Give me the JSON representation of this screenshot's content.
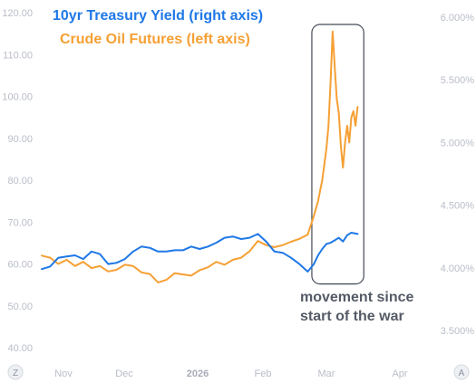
{
  "chart_data": {
    "type": "line",
    "legend": [
      {
        "label": "10yr Treasury Yield (right axis)",
        "color": "#1f78e6"
      },
      {
        "label": "Crude Oil Futures (left axis)",
        "color": "#f5a035"
      }
    ],
    "left_axis": {
      "ticks": [
        "120.00",
        "110.00",
        "100.00",
        "90.00",
        "80.00",
        "70.00",
        "60.00",
        "50.00",
        "40.00"
      ],
      "ylim": [
        40,
        120
      ]
    },
    "right_axis": {
      "ticks": [
        "6.000%",
        "5.500%",
        "5.000%",
        "4.500%",
        "4.000%",
        "3.500%"
      ],
      "ylim": [
        3.5,
        6.0
      ]
    },
    "x_axis": {
      "ticks": [
        "Nov",
        "Dec",
        "2026",
        "Feb",
        "Mar",
        "Apr"
      ],
      "range": [
        "2025-10-22",
        "2026-04-25"
      ]
    },
    "series": [
      {
        "name": "Crude Oil Futures (left axis)",
        "axis": "left",
        "color": "#f5a035",
        "points": [
          [
            "2025-10-22",
            62.0
          ],
          [
            "2025-10-26",
            61.5
          ],
          [
            "2025-10-30",
            60.0
          ],
          [
            "2025-11-03",
            61.0
          ],
          [
            "2025-11-07",
            59.5
          ],
          [
            "2025-11-11",
            60.5
          ],
          [
            "2025-11-15",
            59.0
          ],
          [
            "2025-11-19",
            59.5
          ],
          [
            "2025-11-23",
            58.2
          ],
          [
            "2025-11-27",
            58.6
          ],
          [
            "2025-12-01",
            59.8
          ],
          [
            "2025-12-05",
            59.5
          ],
          [
            "2025-12-09",
            58.0
          ],
          [
            "2025-12-13",
            57.6
          ],
          [
            "2025-12-17",
            55.6
          ],
          [
            "2025-12-21",
            56.2
          ],
          [
            "2025-12-25",
            57.8
          ],
          [
            "2025-12-29",
            57.5
          ],
          [
            "2026-01-02",
            57.2
          ],
          [
            "2026-01-06",
            58.5
          ],
          [
            "2026-01-10",
            59.2
          ],
          [
            "2026-01-14",
            60.5
          ],
          [
            "2026-01-18",
            59.8
          ],
          [
            "2026-01-22",
            61.0
          ],
          [
            "2026-01-26",
            61.5
          ],
          [
            "2026-01-30",
            63.0
          ],
          [
            "2026-02-03",
            65.5
          ],
          [
            "2026-02-07",
            64.5
          ],
          [
            "2026-02-11",
            64.0
          ],
          [
            "2026-02-15",
            64.5
          ],
          [
            "2026-02-19",
            65.3
          ],
          [
            "2026-02-23",
            66.0
          ],
          [
            "2026-02-27",
            67.0
          ],
          [
            "2026-03-02",
            71.5
          ],
          [
            "2026-03-04",
            75.0
          ],
          [
            "2026-03-06",
            80.0
          ],
          [
            "2026-03-08",
            87.5
          ],
          [
            "2026-03-09",
            93.0
          ],
          [
            "2026-03-10",
            103.5
          ],
          [
            "2026-03-11",
            115.5
          ],
          [
            "2026-03-12",
            107.0
          ],
          [
            "2026-03-13",
            99.5
          ],
          [
            "2026-03-14",
            96.0
          ],
          [
            "2026-03-15",
            88.0
          ],
          [
            "2026-03-16",
            83.0
          ],
          [
            "2026-03-17",
            89.0
          ],
          [
            "2026-03-18",
            93.0
          ],
          [
            "2026-03-19",
            89.0
          ],
          [
            "2026-03-20",
            95.0
          ],
          [
            "2026-03-21",
            96.5
          ],
          [
            "2026-03-22",
            93.0
          ],
          [
            "2026-03-23",
            97.5
          ]
        ]
      },
      {
        "name": "10yr Treasury Yield (right axis)",
        "axis": "right",
        "color": "#1f78e6",
        "points": [
          [
            "2025-10-22",
            3.99
          ],
          [
            "2025-10-26",
            4.01
          ],
          [
            "2025-10-30",
            4.08
          ],
          [
            "2025-11-03",
            4.09
          ],
          [
            "2025-11-07",
            4.1
          ],
          [
            "2025-11-11",
            4.07
          ],
          [
            "2025-11-15",
            4.13
          ],
          [
            "2025-11-19",
            4.11
          ],
          [
            "2025-11-23",
            4.03
          ],
          [
            "2025-11-27",
            4.04
          ],
          [
            "2025-12-01",
            4.07
          ],
          [
            "2025-12-05",
            4.13
          ],
          [
            "2025-12-09",
            4.17
          ],
          [
            "2025-12-13",
            4.16
          ],
          [
            "2025-12-17",
            4.13
          ],
          [
            "2025-12-21",
            4.13
          ],
          [
            "2025-12-25",
            4.14
          ],
          [
            "2025-12-29",
            4.14
          ],
          [
            "2026-01-02",
            4.17
          ],
          [
            "2026-01-06",
            4.15
          ],
          [
            "2026-01-10",
            4.17
          ],
          [
            "2026-01-14",
            4.2
          ],
          [
            "2026-01-18",
            4.24
          ],
          [
            "2026-01-22",
            4.25
          ],
          [
            "2026-01-26",
            4.23
          ],
          [
            "2026-01-30",
            4.24
          ],
          [
            "2026-02-03",
            4.27
          ],
          [
            "2026-02-07",
            4.21
          ],
          [
            "2026-02-11",
            4.13
          ],
          [
            "2026-02-15",
            4.12
          ],
          [
            "2026-02-19",
            4.08
          ],
          [
            "2026-02-23",
            4.03
          ],
          [
            "2026-02-27",
            3.97
          ],
          [
            "2026-03-02",
            4.03
          ],
          [
            "2026-03-04",
            4.1
          ],
          [
            "2026-03-06",
            4.15
          ],
          [
            "2026-03-08",
            4.19
          ],
          [
            "2026-03-10",
            4.2
          ],
          [
            "2026-03-12",
            4.22
          ],
          [
            "2026-03-14",
            4.24
          ],
          [
            "2026-03-16",
            4.21
          ],
          [
            "2026-03-18",
            4.26
          ],
          [
            "2026-03-20",
            4.28
          ],
          [
            "2026-03-23",
            4.27
          ]
        ]
      }
    ],
    "annotation": {
      "text_line1": "movement since",
      "text_line2": "start of the war",
      "box_start": "2026-03-01",
      "box_end": "2026-03-26",
      "box_top": 6.0,
      "box_bottom": 3.9
    }
  },
  "controls": {
    "left_button": "Z",
    "right_button": "A"
  }
}
